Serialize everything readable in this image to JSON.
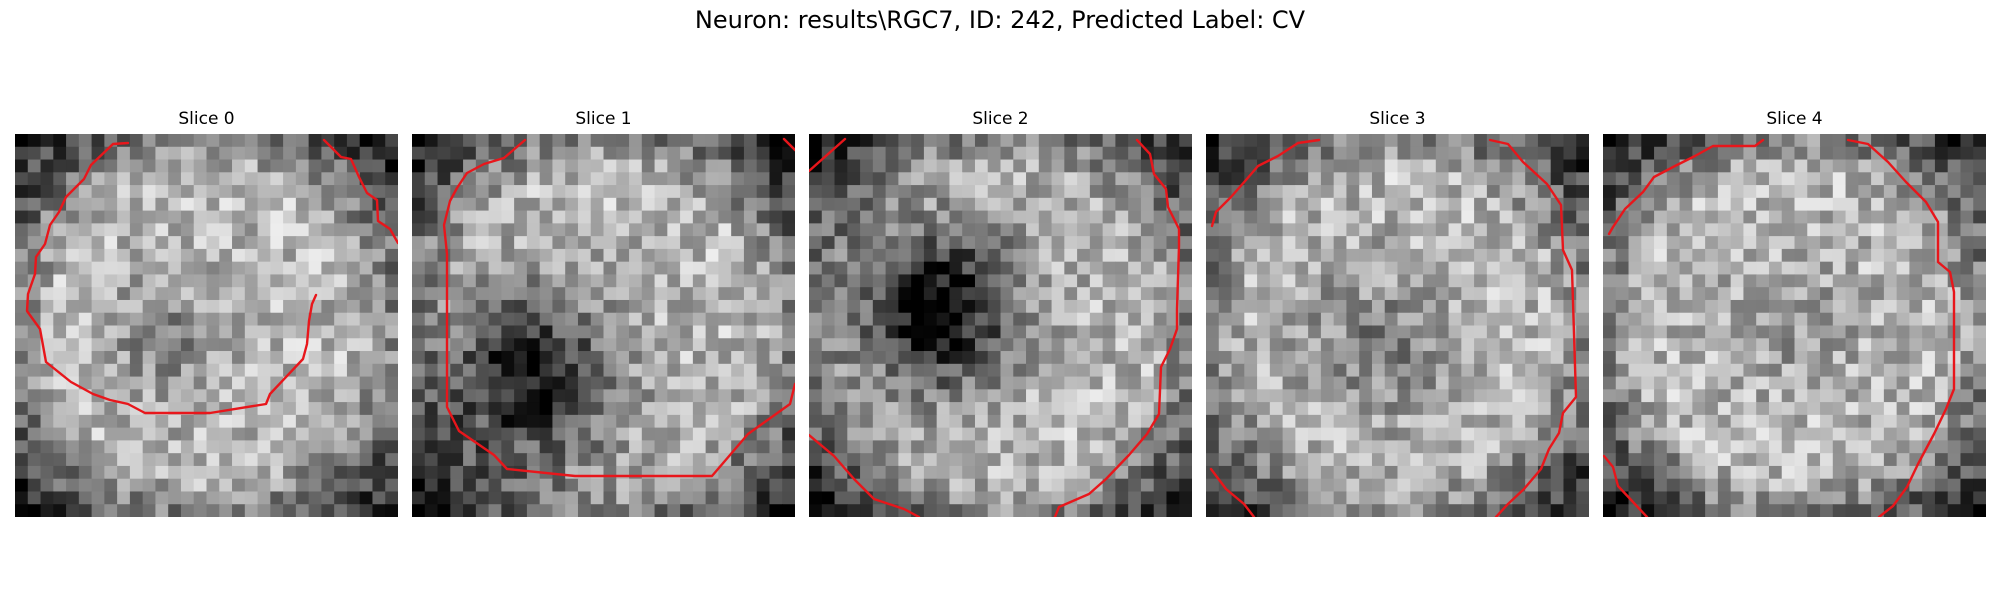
{
  "figure": {
    "title": "Neuron: results\\RGC7, ID: 242, Predicted Label: CV",
    "contour_color": "#e8161b",
    "colormap": "gray"
  },
  "slices": [
    {
      "title": "Slice 0",
      "grid_size": 30,
      "seed": 11,
      "dark_blob": [
        0.4,
        0.55,
        0.12,
        0.25
      ]
    },
    {
      "title": "Slice 1",
      "grid_size": 30,
      "seed": 23,
      "dark_blob": [
        0.3,
        0.65,
        0.16,
        0.85
      ]
    },
    {
      "title": "Slice 2",
      "grid_size": 30,
      "seed": 37,
      "dark_blob": [
        0.33,
        0.45,
        0.15,
        0.95
      ]
    },
    {
      "title": "Slice 3",
      "grid_size": 30,
      "seed": 51,
      "dark_blob": [
        0.45,
        0.55,
        0.14,
        0.3
      ]
    },
    {
      "title": "Slice 4",
      "grid_size": 30,
      "seed": 67,
      "dark_blob": [
        0.5,
        0.5,
        0.12,
        0.15
      ]
    }
  ]
}
